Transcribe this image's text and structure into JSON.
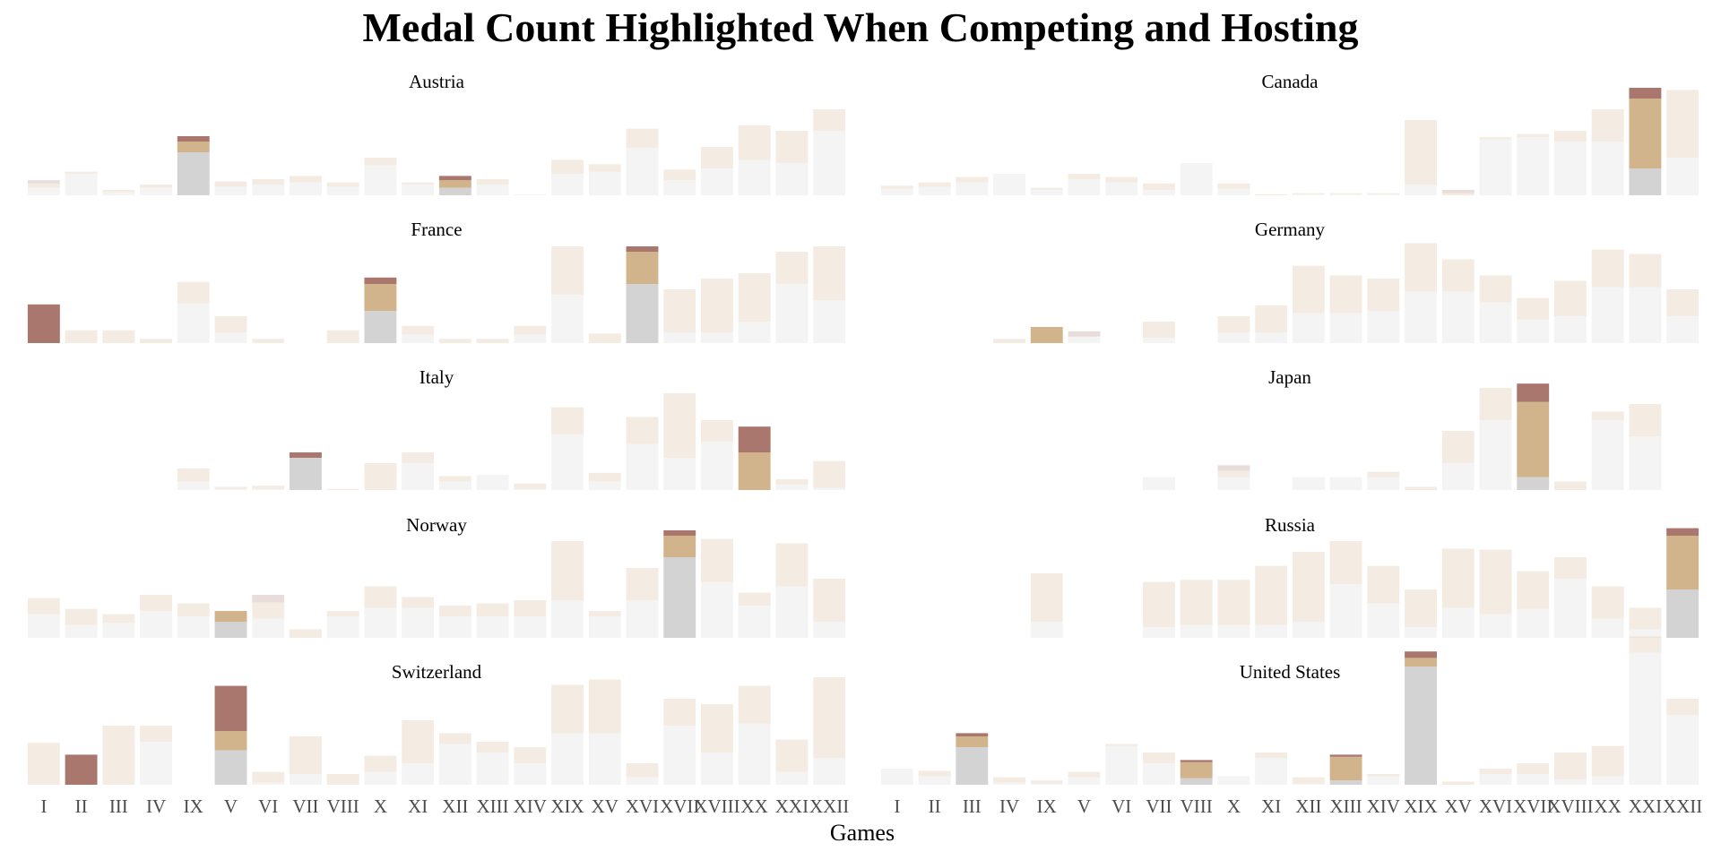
{
  "chart_data": {
    "type": "bar",
    "title": "Medal Count Highlighted When Competing and Hosting",
    "xlabel": "Games",
    "ylabel": "",
    "categories": [
      "I",
      "II",
      "III",
      "IV",
      "IX",
      "V",
      "VI",
      "VII",
      "VIII",
      "X",
      "XI",
      "XII",
      "XIII",
      "XIV",
      "XIX",
      "XV",
      "XVI",
      "XVII",
      "XVIII",
      "XX",
      "XXI",
      "XXII"
    ],
    "stack_keys": [
      "hosting_competing",
      "competing_only",
      "not_competing"
    ],
    "stack_colors": {
      "hosting_competing": "#a9776e",
      "competing_only": "#d2b48c",
      "not_competing": "#d3d3d3"
    },
    "default_opacity": 0.25,
    "grid": false,
    "legend": "none",
    "ylim": [
      0,
      100
    ],
    "facets": [
      {
        "name": "Austria",
        "highlight": [
          4,
          11
        ],
        "values": [
          [
            3,
            4,
            7
          ],
          [
            0,
            2,
            20
          ],
          [
            0,
            2,
            3
          ],
          [
            0,
            3,
            7
          ],
          [
            5,
            10,
            40
          ],
          [
            0,
            5,
            8
          ],
          [
            0,
            5,
            10
          ],
          [
            0,
            6,
            12
          ],
          [
            0,
            4,
            8
          ],
          [
            0,
            7,
            28
          ],
          [
            0,
            2,
            10
          ],
          [
            4,
            7,
            7
          ],
          [
            0,
            5,
            10
          ],
          [
            0,
            0,
            1
          ],
          [
            0,
            13,
            20
          ],
          [
            0,
            7,
            22
          ],
          [
            0,
            18,
            44
          ],
          [
            0,
            10,
            14
          ],
          [
            0,
            20,
            25
          ],
          [
            0,
            32,
            33
          ],
          [
            0,
            30,
            30
          ],
          [
            0,
            20,
            60
          ]
        ]
      },
      {
        "name": "Canada",
        "highlight": [
          20
        ],
        "values": [
          [
            0,
            3,
            6
          ],
          [
            0,
            4,
            8
          ],
          [
            0,
            5,
            12
          ],
          [
            0,
            0,
            20
          ],
          [
            0,
            2,
            5
          ],
          [
            0,
            5,
            15
          ],
          [
            0,
            5,
            12
          ],
          [
            0,
            6,
            5
          ],
          [
            0,
            0,
            30
          ],
          [
            0,
            5,
            6
          ],
          [
            0,
            1,
            0
          ],
          [
            0,
            1,
            1
          ],
          [
            0,
            1,
            1
          ],
          [
            0,
            1,
            1
          ],
          [
            0,
            60,
            10
          ],
          [
            3,
            2,
            0
          ],
          [
            0,
            2,
            52
          ],
          [
            0,
            3,
            54
          ],
          [
            0,
            10,
            50
          ],
          [
            0,
            30,
            50
          ],
          [
            10,
            65,
            25
          ],
          [
            0,
            63,
            35
          ]
        ]
      },
      {
        "name": "France",
        "highlight": [
          0,
          9,
          16
        ],
        "values": [
          [
            36,
            0,
            0
          ],
          [
            0,
            12,
            0
          ],
          [
            0,
            12,
            0
          ],
          [
            0,
            4,
            0
          ],
          [
            0,
            20,
            37
          ],
          [
            0,
            15,
            10
          ],
          [
            0,
            4,
            0
          ],
          [
            0,
            0,
            0
          ],
          [
            0,
            12,
            0
          ],
          [
            6,
            25,
            30
          ],
          [
            0,
            8,
            8
          ],
          [
            0,
            4,
            0
          ],
          [
            0,
            4,
            0
          ],
          [
            0,
            8,
            8
          ],
          [
            0,
            45,
            45
          ],
          [
            0,
            9,
            0
          ],
          [
            5,
            30,
            55
          ],
          [
            0,
            40,
            10
          ],
          [
            0,
            50,
            10
          ],
          [
            0,
            45,
            20
          ],
          [
            0,
            30,
            55
          ],
          [
            0,
            50,
            40
          ]
        ]
      },
      {
        "name": "Germany",
        "highlight": [
          4
        ],
        "values": [
          [
            0,
            0,
            0
          ],
          [
            0,
            0,
            0
          ],
          [
            0,
            0,
            0
          ],
          [
            0,
            4,
            0
          ],
          [
            0,
            15,
            0
          ],
          [
            5,
            0,
            6
          ],
          [
            0,
            0,
            0
          ],
          [
            0,
            15,
            5
          ],
          [
            0,
            0,
            0
          ],
          [
            0,
            15,
            10
          ],
          [
            0,
            25,
            10
          ],
          [
            0,
            44,
            28
          ],
          [
            0,
            35,
            28
          ],
          [
            0,
            30,
            30
          ],
          [
            0,
            45,
            48
          ],
          [
            0,
            30,
            48
          ],
          [
            0,
            25,
            38
          ],
          [
            0,
            20,
            22
          ],
          [
            0,
            33,
            25
          ],
          [
            0,
            35,
            52
          ],
          [
            0,
            31,
            52
          ],
          [
            0,
            25,
            25
          ]
        ]
      },
      {
        "name": "Italy",
        "highlight": [
          7,
          19
        ],
        "values": [
          [
            0,
            0,
            0
          ],
          [
            0,
            0,
            0
          ],
          [
            0,
            0,
            0
          ],
          [
            0,
            0,
            0
          ],
          [
            0,
            12,
            8
          ],
          [
            0,
            2,
            1
          ],
          [
            0,
            3,
            1
          ],
          [
            5,
            0,
            30
          ],
          [
            0,
            1,
            0
          ],
          [
            0,
            25,
            0
          ],
          [
            0,
            10,
            25
          ],
          [
            0,
            5,
            8
          ],
          [
            0,
            0,
            14
          ],
          [
            0,
            5,
            1
          ],
          [
            0,
            25,
            52
          ],
          [
            0,
            8,
            8
          ],
          [
            0,
            25,
            43
          ],
          [
            0,
            60,
            30
          ],
          [
            0,
            20,
            45
          ],
          [
            24,
            35,
            0
          ],
          [
            0,
            5,
            5
          ],
          [
            0,
            25,
            2
          ]
        ]
      },
      {
        "name": "Japan",
        "highlight": [
          8,
          17
        ],
        "values": [
          [
            0,
            0,
            0
          ],
          [
            0,
            0,
            0
          ],
          [
            0,
            0,
            0
          ],
          [
            0,
            0,
            0
          ],
          [
            0,
            0,
            0
          ],
          [
            0,
            0,
            0
          ],
          [
            0,
            0,
            0
          ],
          [
            0,
            0,
            12
          ],
          [
            0,
            0,
            0
          ],
          [
            5,
            6,
            12
          ],
          [
            0,
            0,
            0
          ],
          [
            0,
            0,
            12
          ],
          [
            0,
            0,
            12
          ],
          [
            0,
            5,
            12
          ],
          [
            0,
            3,
            0
          ],
          [
            0,
            30,
            25
          ],
          [
            0,
            30,
            65
          ],
          [
            17,
            70,
            12
          ],
          [
            0,
            8,
            0
          ],
          [
            0,
            8,
            65
          ],
          [
            0,
            30,
            50
          ],
          [
            0,
            0,
            0
          ]
        ]
      },
      {
        "name": "Norway",
        "highlight": [
          5,
          17
        ],
        "values": [
          [
            0,
            15,
            22
          ],
          [
            0,
            15,
            12
          ],
          [
            0,
            8,
            14
          ],
          [
            0,
            15,
            25
          ],
          [
            0,
            12,
            20
          ],
          [
            0,
            10,
            15
          ],
          [
            7,
            15,
            18
          ],
          [
            0,
            8,
            0
          ],
          [
            0,
            5,
            20
          ],
          [
            0,
            20,
            28
          ],
          [
            0,
            10,
            28
          ],
          [
            0,
            10,
            20
          ],
          [
            0,
            12,
            20
          ],
          [
            0,
            15,
            20
          ],
          [
            0,
            55,
            35
          ],
          [
            0,
            5,
            20
          ],
          [
            0,
            30,
            35
          ],
          [
            5,
            20,
            75
          ],
          [
            0,
            40,
            52
          ],
          [
            0,
            12,
            30
          ],
          [
            0,
            40,
            48
          ],
          [
            0,
            40,
            15
          ]
        ]
      },
      {
        "name": "Russia",
        "highlight": [
          21
        ],
        "values": [
          [
            0,
            0,
            0
          ],
          [
            0,
            0,
            0
          ],
          [
            0,
            0,
            0
          ],
          [
            0,
            0,
            0
          ],
          [
            0,
            45,
            15
          ],
          [
            0,
            0,
            0
          ],
          [
            0,
            0,
            0
          ],
          [
            0,
            42,
            10
          ],
          [
            0,
            42,
            12
          ],
          [
            0,
            42,
            12
          ],
          [
            0,
            55,
            12
          ],
          [
            0,
            65,
            15
          ],
          [
            0,
            40,
            50
          ],
          [
            0,
            35,
            32
          ],
          [
            0,
            35,
            10
          ],
          [
            0,
            55,
            28
          ],
          [
            0,
            60,
            22
          ],
          [
            0,
            35,
            27
          ],
          [
            0,
            20,
            55
          ],
          [
            0,
            30,
            18
          ],
          [
            0,
            20,
            8
          ],
          [
            7,
            50,
            45
          ]
        ]
      },
      {
        "name": "Switzerland",
        "highlight": [
          1,
          5
        ],
        "values": [
          [
            0,
            39,
            0
          ],
          [
            28,
            0,
            0
          ],
          [
            0,
            55,
            0
          ],
          [
            0,
            15,
            40
          ],
          [
            0,
            0,
            0
          ],
          [
            42,
            18,
            32
          ],
          [
            0,
            10,
            2
          ],
          [
            0,
            35,
            10
          ],
          [
            0,
            10,
            0
          ],
          [
            0,
            15,
            12
          ],
          [
            0,
            40,
            20
          ],
          [
            0,
            10,
            38
          ],
          [
            0,
            10,
            30
          ],
          [
            0,
            15,
            20
          ],
          [
            0,
            45,
            48
          ],
          [
            0,
            50,
            48
          ],
          [
            0,
            13,
            7
          ],
          [
            0,
            25,
            55
          ],
          [
            0,
            45,
            30
          ],
          [
            0,
            35,
            57
          ],
          [
            0,
            30,
            12
          ],
          [
            0,
            75,
            25
          ]
        ]
      },
      {
        "name": "United States",
        "highlight": [
          2,
          8,
          12,
          14
        ],
        "values": [
          [
            0,
            0,
            15
          ],
          [
            0,
            5,
            8
          ],
          [
            3,
            10,
            35
          ],
          [
            0,
            5,
            2
          ],
          [
            0,
            3,
            1
          ],
          [
            0,
            5,
            7
          ],
          [
            0,
            2,
            36
          ],
          [
            0,
            10,
            20
          ],
          [
            2,
            15,
            6
          ],
          [
            0,
            0,
            8
          ],
          [
            0,
            5,
            25
          ],
          [
            0,
            6,
            1
          ],
          [
            2,
            22,
            4
          ],
          [
            0,
            2,
            8
          ],
          [
            6,
            8,
            110
          ],
          [
            0,
            3,
            0
          ],
          [
            0,
            5,
            10
          ],
          [
            0,
            10,
            10
          ],
          [
            0,
            25,
            5
          ],
          [
            0,
            28,
            8
          ],
          [
            0,
            15,
            123
          ],
          [
            0,
            15,
            65
          ]
        ]
      }
    ]
  }
}
